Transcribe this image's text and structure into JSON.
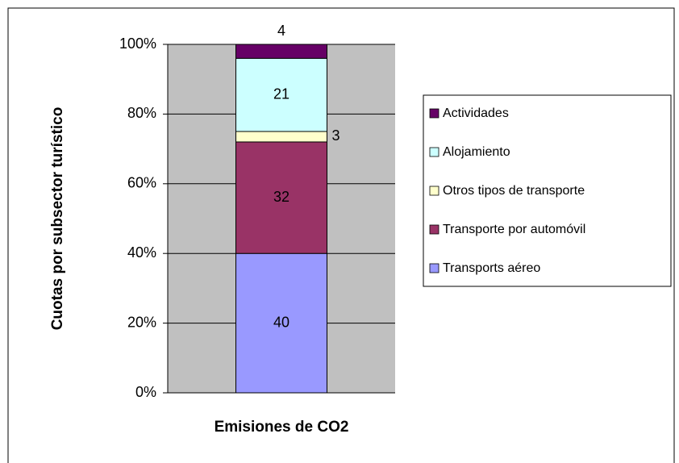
{
  "chart_data": {
    "type": "stacked_bar",
    "y_label": "Cuotas por subsector turístico",
    "categories": [
      "Emisiones de CO2"
    ],
    "series": [
      {
        "name": "Transports aéreo",
        "color": "#9999ff",
        "values": [
          40
        ]
      },
      {
        "name": "Transporte por automóvil",
        "color": "#993366",
        "values": [
          32
        ]
      },
      {
        "name": "Otros tipos de transporte",
        "color": "#ffffcc",
        "values": [
          3
        ]
      },
      {
        "name": "Alojamiento",
        "color": "#ccffff",
        "values": [
          21
        ]
      },
      {
        "name": "Actividades",
        "color": "#660066",
        "values": [
          4
        ]
      }
    ],
    "ylim": [
      0,
      100
    ],
    "yticks": [
      {
        "value": 0,
        "label": "0%"
      },
      {
        "value": 20,
        "label": "20%"
      },
      {
        "value": 40,
        "label": "40%"
      },
      {
        "value": 60,
        "label": "60%"
      },
      {
        "value": 80,
        "label": "80%"
      },
      {
        "value": 100,
        "label": "100%"
      }
    ],
    "grid": true,
    "plot_background": "#c0c0c0",
    "legend": "right"
  }
}
